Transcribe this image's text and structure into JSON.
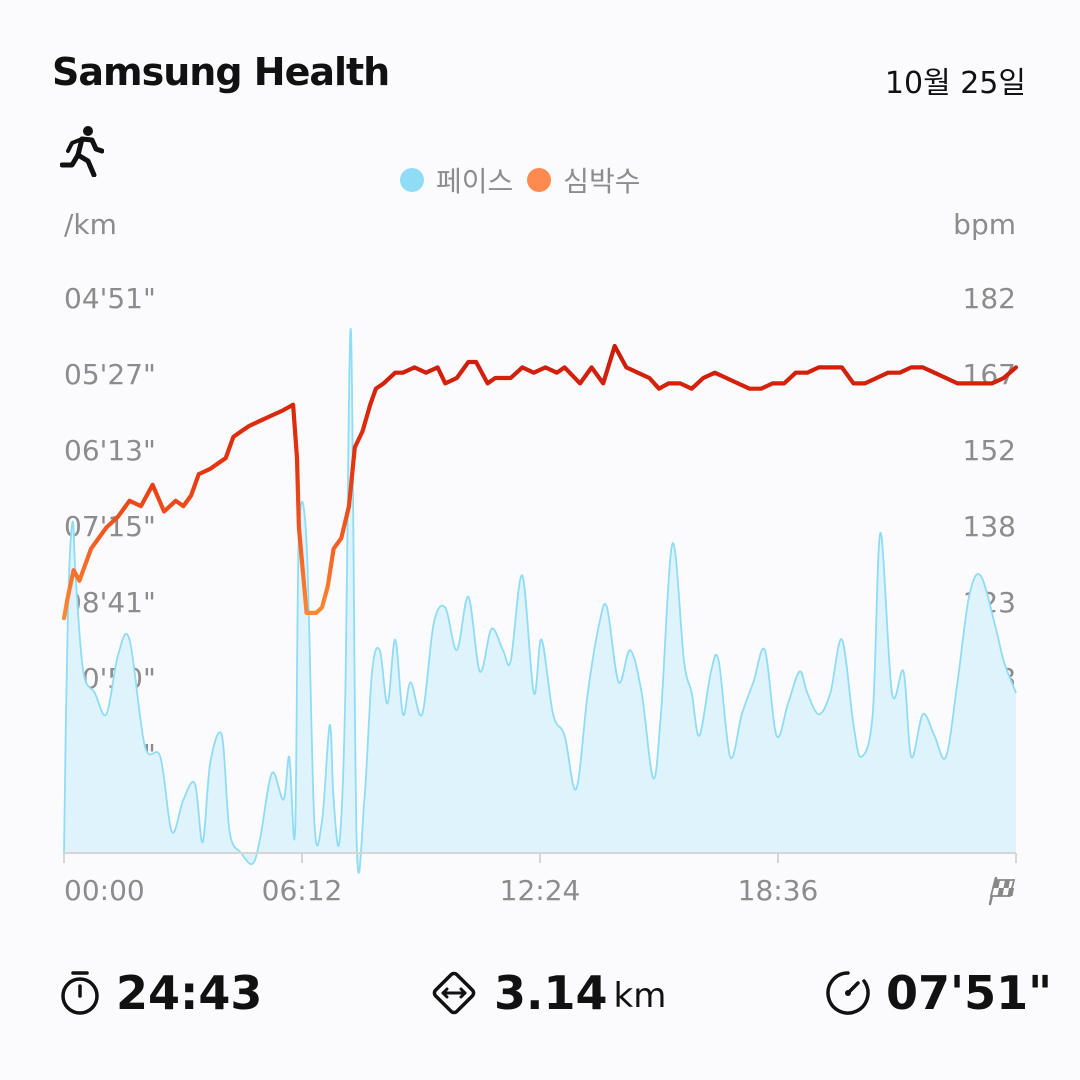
{
  "header": {
    "app_title": "Samsung Health",
    "date": "10월 25일"
  },
  "legend": {
    "pace_label": "페이스",
    "hr_label": "심박수",
    "pace_color": "#8fdcf6",
    "hr_color": "#ff8a50"
  },
  "axes": {
    "left_unit": "/km",
    "right_unit": "bpm"
  },
  "chart_data": {
    "type": "line",
    "x_ticks": [
      "00:00",
      "06:12",
      "12:24",
      "18:36"
    ],
    "left_ticks": [
      "04'51\"",
      "05'27\"",
      "06'13\"",
      "07'15\"",
      "08'41\"",
      "10'50\"",
      "14'23\""
    ],
    "right_ticks": [
      "182",
      "167",
      "152",
      "138",
      "123",
      "108",
      "93"
    ],
    "right_ylim": [
      78,
      182
    ],
    "finish_icon": "checkered-flag-icon",
    "series": [
      {
        "name": "페이스",
        "axis": "left",
        "area": true,
        "x": [
          0,
          0.1,
          0.22,
          0.3,
          0.5,
          0.8,
          1.1,
          1.4,
          1.7,
          2.1,
          2.5,
          2.8,
          3.1,
          3.4,
          3.6,
          3.8,
          4.1,
          4.3,
          4.6,
          4.9,
          5.1,
          5.4,
          5.7,
          5.85,
          6.0,
          6.1,
          6.3,
          6.5,
          6.7,
          6.9,
          7.0,
          7.15,
          7.3,
          7.45,
          7.6,
          7.8,
          8.0,
          8.2,
          8.4,
          8.6,
          8.8,
          9.0,
          9.3,
          9.6,
          9.9,
          10.2,
          10.5,
          10.8,
          11.1,
          11.4,
          11.6,
          11.9,
          12.2,
          12.4,
          12.7,
          13.0,
          13.3,
          13.6,
          13.9,
          14.1,
          14.4,
          14.7,
          15.0,
          15.3,
          15.5,
          15.8,
          16.1,
          16.3,
          16.5,
          16.8,
          17.0,
          17.3,
          17.6,
          17.9,
          18.2,
          18.5,
          18.8,
          19.1,
          19.3,
          19.6,
          19.9,
          20.2,
          20.5,
          20.7,
          21.0,
          21.2,
          21.5,
          21.8,
          22.0,
          22.3,
          22.6,
          22.9,
          23.2,
          23.5,
          23.8,
          24.2,
          24.4,
          24.72
        ],
        "y": [
          78,
          123,
          140,
          130,
          112,
          108,
          104,
          115,
          118,
          98,
          96,
          82,
          88,
          91,
          80,
          95,
          100,
          82,
          78,
          76,
          81,
          93,
          88,
          96,
          82,
          138,
          136,
          84,
          84,
          102,
          88,
          80,
          106,
          176,
          80,
          88,
          112,
          116,
          106,
          118,
          104,
          110,
          104,
          121,
          124,
          116,
          126,
          112,
          120,
          116,
          114,
          130,
          108,
          118,
          104,
          100,
          90,
          108,
          121,
          124,
          110,
          116,
          108,
          92,
          104,
          136,
          114,
          108,
          100,
          112,
          114,
          96,
          104,
          110,
          116,
          100,
          106,
          112,
          108,
          104,
          108,
          118,
          102,
          96,
          104,
          138,
          108,
          112,
          96,
          104,
          100,
          96,
          110,
          126,
          130,
          120,
          114,
          108
        ]
      },
      {
        "name": "심박수",
        "axis": "right",
        "area": false,
        "x": [
          0,
          0.1,
          0.25,
          0.4,
          0.55,
          0.7,
          0.9,
          1.1,
          1.4,
          1.7,
          2.0,
          2.3,
          2.6,
          2.9,
          3.1,
          3.3,
          3.5,
          3.8,
          4.0,
          4.2,
          4.4,
          4.6,
          4.8,
          5.1,
          5.4,
          5.7,
          5.95,
          6.05,
          6.1,
          6.3,
          6.55,
          6.7,
          6.85,
          7.0,
          7.2,
          7.4,
          7.55,
          7.75,
          7.95,
          8.1,
          8.3,
          8.6,
          8.8,
          9.1,
          9.4,
          9.7,
          9.9,
          10.2,
          10.5,
          10.7,
          11.0,
          11.2,
          11.6,
          11.9,
          12.2,
          12.5,
          12.8,
          13.0,
          13.4,
          13.7,
          14.0,
          14.3,
          14.6,
          14.9,
          15.2,
          15.45,
          15.7,
          16.0,
          16.3,
          16.6,
          16.9,
          17.2,
          17.5,
          17.8,
          18.1,
          18.4,
          18.7,
          19.0,
          19.3,
          19.6,
          19.9,
          20.2,
          20.5,
          20.8,
          21.1,
          21.4,
          21.7,
          22.0,
          22.3,
          22.6,
          22.9,
          23.2,
          23.5,
          23.8,
          24.1,
          24.4,
          24.72
        ],
        "y": [
          122,
          126,
          131,
          129,
          132,
          135,
          137,
          139,
          141,
          144,
          143,
          147,
          142,
          144,
          143,
          145,
          149,
          150,
          151,
          152,
          156,
          157,
          158,
          159,
          160,
          161,
          162,
          152,
          139,
          123,
          123,
          124,
          128,
          135,
          137,
          143,
          154,
          157,
          162,
          165,
          166,
          168,
          168,
          169,
          168,
          169,
          166,
          167,
          170,
          170,
          166,
          167,
          167,
          169,
          168,
          169,
          168,
          169,
          166,
          169,
          166,
          173,
          169,
          168,
          167,
          165,
          166,
          166,
          165,
          167,
          168,
          167,
          166,
          165,
          165,
          166,
          166,
          168,
          168,
          169,
          169,
          169,
          166,
          166,
          167,
          168,
          168,
          169,
          169,
          168,
          167,
          166,
          166,
          166,
          166,
          167,
          169
        ]
      }
    ]
  },
  "stats": {
    "time": {
      "icon": "stopwatch-icon",
      "value": "24:43"
    },
    "distance": {
      "icon": "distance-icon",
      "value": "3.14",
      "unit": "km"
    },
    "pace": {
      "icon": "speedometer-icon",
      "value": "07'51\""
    }
  }
}
